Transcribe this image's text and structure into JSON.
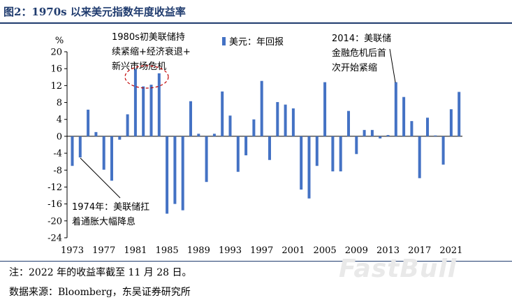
{
  "header": {
    "title": "图2：1970s 以来美元指数年度收益率"
  },
  "footer": {
    "note": "注：2022 年的收益率截至 11 月 28 日。",
    "source": "数据来源：Bloomberg，东吴证券研究所"
  },
  "watermark": "FastBull",
  "chart_data": {
    "type": "bar",
    "title": "",
    "ylabel": "%",
    "xlabel": "",
    "ylim": [
      -24,
      20
    ],
    "yticks": [
      20,
      16,
      12,
      8,
      4,
      0,
      -4,
      -8,
      -12,
      -16,
      -20,
      -24
    ],
    "xtick_labels": [
      "1973",
      "1977",
      "1981",
      "1985",
      "1989",
      "1993",
      "1997",
      "2001",
      "2005",
      "2009",
      "2013",
      "2017",
      "2021"
    ],
    "legend": {
      "placement": "top-center",
      "label": "美元：年回报"
    },
    "series": [
      {
        "name": "美元：年回报",
        "color": "#4472c4",
        "x": [
          1973,
          1974,
          1975,
          1976,
          1977,
          1978,
          1979,
          1980,
          1981,
          1982,
          1983,
          1984,
          1985,
          1986,
          1987,
          1988,
          1989,
          1990,
          1991,
          1992,
          1993,
          1994,
          1995,
          1996,
          1997,
          1998,
          1999,
          2000,
          2001,
          2002,
          2003,
          2004,
          2005,
          2006,
          2007,
          2008,
          2009,
          2010,
          2011,
          2012,
          2013,
          2014,
          2015,
          2016,
          2017,
          2018,
          2019,
          2020,
          2021,
          2022
        ],
        "values": [
          -7.0,
          -5.0,
          6.3,
          1.0,
          -7.9,
          -10.5,
          -0.8,
          5.2,
          15.9,
          11.8,
          12.2,
          14.9,
          -18.3,
          -16.0,
          -17.5,
          8.3,
          0.6,
          -10.8,
          0.6,
          10.6,
          4.9,
          -8.4,
          -4.5,
          4.0,
          13.1,
          -5.6,
          8.1,
          7.5,
          6.6,
          -12.6,
          -14.7,
          -7.0,
          12.8,
          -8.3,
          -8.3,
          6.0,
          -4.2,
          1.5,
          1.5,
          -0.5,
          0.3,
          12.8,
          9.3,
          3.6,
          -9.9,
          4.4,
          0.2,
          -6.7,
          6.4,
          10.5
        ]
      }
    ],
    "annotations": [
      {
        "text": "1980s初美联储持续紧缩+经济衰退+新兴市场危机",
        "lines": [
          "1980s初美联储持",
          "续紧缩+经济衰退+",
          "新兴市场危机"
        ]
      },
      {
        "text": "2014：美联储金融危机后首次开始紧缩",
        "lines": [
          "2014：美联储",
          "金融危机后首",
          "次开始紧缩"
        ]
      },
      {
        "text": "1974年：美联储扛着通胀大幅降息",
        "lines": [
          "1974年：美联储扛",
          "着通胀大幅降息"
        ]
      }
    ]
  }
}
